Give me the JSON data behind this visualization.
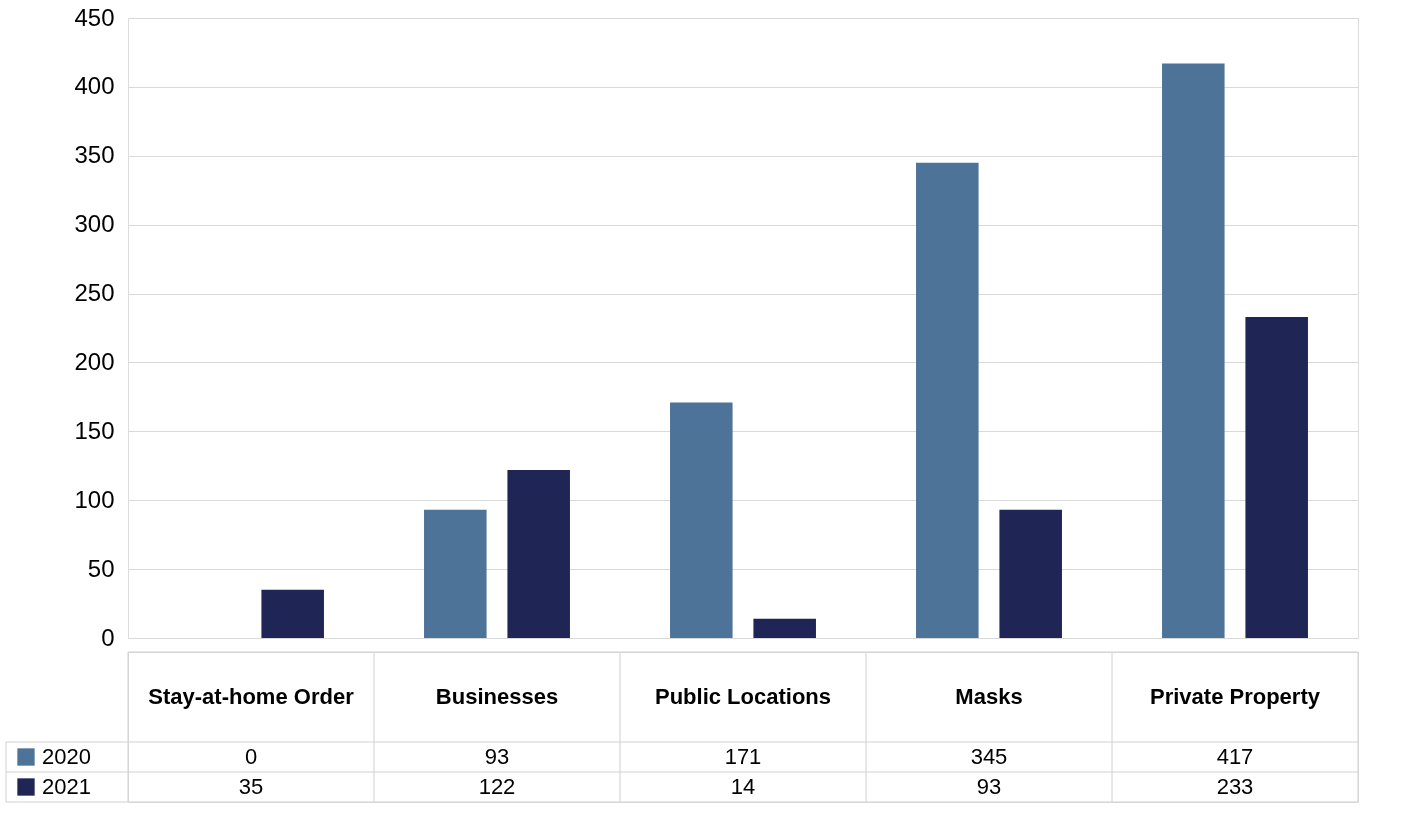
{
  "chart_data": {
    "type": "bar",
    "categories": [
      "Stay-at-home Order",
      "Businesses",
      "Public Locations",
      "Masks",
      "Private Property"
    ],
    "series": [
      {
        "name": "2020",
        "color": "#4e7399",
        "values": [
          0,
          93,
          171,
          345,
          417
        ]
      },
      {
        "name": "2021",
        "color": "#1f2555",
        "values": [
          35,
          122,
          14,
          93,
          233
        ]
      }
    ],
    "ylim": [
      0,
      450
    ],
    "yticks": [
      0,
      50,
      100,
      150,
      200,
      250,
      300,
      350,
      400,
      450
    ],
    "grid": "y",
    "legend": "bottom",
    "data_labels": true
  }
}
